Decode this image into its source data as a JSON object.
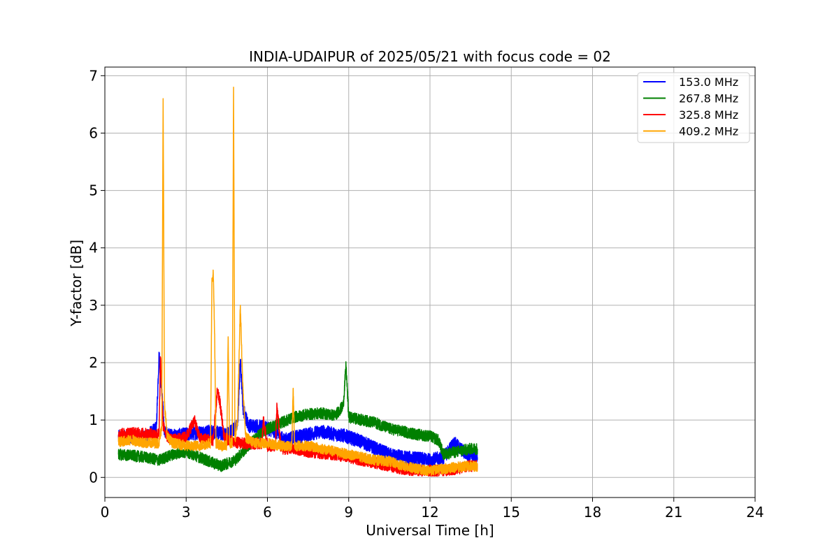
{
  "chart_data": {
    "type": "line",
    "title": "INDIA-UDAIPUR of 2025/05/21 with focus code = 02",
    "xlabel": "Universal Time [h]",
    "ylabel": "Y-factor [dB]",
    "xlim": [
      0,
      24
    ],
    "ylim": [
      -0.35,
      7.15
    ],
    "xticks": [
      0,
      3,
      6,
      9,
      12,
      15,
      18,
      21,
      24
    ],
    "yticks": [
      0,
      1,
      2,
      3,
      4,
      5,
      6,
      7
    ],
    "grid": true,
    "legend_position": "top-right",
    "series": [
      {
        "name": "153.0 MHz",
        "color": "#0000ff",
        "noise": 0.12,
        "x": [
          0.5,
          1.0,
          1.5,
          1.9,
          2.0,
          2.1,
          2.2,
          2.3,
          2.5,
          3.0,
          3.5,
          3.9,
          4.1,
          4.5,
          4.9,
          5.0,
          5.1,
          5.3,
          5.6,
          6.0,
          6.3,
          6.6,
          7.0,
          7.5,
          8.0,
          8.5,
          8.9,
          9.0,
          9.5,
          10.0,
          10.5,
          11.0,
          11.5,
          12.0,
          12.5,
          12.9,
          13.0,
          13.3,
          13.75
        ],
        "y": [
          0.7,
          0.72,
          0.7,
          0.85,
          2.15,
          1.5,
          0.8,
          0.75,
          0.72,
          0.75,
          0.78,
          0.8,
          0.78,
          0.75,
          0.9,
          2.05,
          1.2,
          0.9,
          0.9,
          0.85,
          0.8,
          0.65,
          0.7,
          0.75,
          0.8,
          0.75,
          0.72,
          0.7,
          0.62,
          0.5,
          0.4,
          0.35,
          0.33,
          0.3,
          0.35,
          0.6,
          0.55,
          0.42,
          0.35
        ]
      },
      {
        "name": "267.8 MHz",
        "color": "#008000",
        "noise": 0.1,
        "x": [
          0.5,
          1.0,
          1.5,
          2.0,
          2.5,
          3.0,
          3.5,
          4.0,
          4.3,
          4.8,
          5.2,
          5.6,
          6.0,
          6.5,
          7.0,
          7.5,
          8.0,
          8.5,
          8.8,
          8.9,
          9.0,
          9.5,
          10.0,
          10.5,
          11.0,
          11.5,
          12.0,
          12.3,
          12.5,
          13.0,
          13.5,
          13.75
        ],
        "y": [
          0.4,
          0.38,
          0.35,
          0.3,
          0.4,
          0.45,
          0.35,
          0.25,
          0.2,
          0.3,
          0.5,
          0.7,
          0.85,
          0.95,
          1.05,
          1.1,
          1.12,
          1.08,
          1.25,
          1.95,
          1.05,
          1.0,
          0.95,
          0.85,
          0.8,
          0.75,
          0.72,
          0.65,
          0.4,
          0.45,
          0.5,
          0.5
        ]
      },
      {
        "name": "325.8 MHz",
        "color": "#ff0000",
        "noise": 0.1,
        "x": [
          0.5,
          1.0,
          1.5,
          2.0,
          2.05,
          2.15,
          2.3,
          2.5,
          3.0,
          3.3,
          3.5,
          4.0,
          4.15,
          4.25,
          4.4,
          4.7,
          5.0,
          5.3,
          5.8,
          5.85,
          6.0,
          6.3,
          6.35,
          6.5,
          7.0,
          7.5,
          8.0,
          8.5,
          9.0,
          9.5,
          10.0,
          10.5,
          11.0,
          11.5,
          12.0,
          12.5,
          13.0,
          13.5,
          13.75
        ],
        "y": [
          0.75,
          0.78,
          0.76,
          0.75,
          2.1,
          0.9,
          0.72,
          0.65,
          0.7,
          1.0,
          0.68,
          0.65,
          1.5,
          1.3,
          0.7,
          0.62,
          0.6,
          0.58,
          0.6,
          1.0,
          0.55,
          0.55,
          1.25,
          0.5,
          0.5,
          0.45,
          0.42,
          0.4,
          0.35,
          0.3,
          0.25,
          0.2,
          0.15,
          0.12,
          0.12,
          0.12,
          0.15,
          0.2,
          0.2
        ]
      },
      {
        "name": "409.2 MHz",
        "color": "#ffa500",
        "noise": 0.09,
        "x": [
          0.5,
          1.0,
          1.5,
          2.0,
          2.1,
          2.15,
          2.2,
          2.3,
          2.5,
          3.0,
          3.5,
          3.9,
          3.95,
          4.0,
          4.05,
          4.1,
          4.3,
          4.5,
          4.55,
          4.6,
          4.7,
          4.75,
          4.8,
          4.9,
          5.0,
          5.05,
          5.1,
          5.2,
          5.5,
          6.0,
          6.5,
          6.9,
          6.95,
          7.0,
          7.5,
          8.0,
          8.5,
          9.0,
          9.5,
          10.0,
          10.5,
          11.0,
          11.5,
          12.0,
          12.5,
          13.0,
          13.5,
          13.75
        ],
        "y": [
          0.62,
          0.65,
          0.6,
          0.6,
          0.9,
          6.6,
          1.3,
          0.7,
          0.6,
          0.55,
          0.55,
          0.6,
          3.4,
          3.55,
          2.5,
          0.6,
          0.55,
          0.55,
          2.45,
          0.6,
          0.6,
          6.8,
          0.65,
          1.0,
          3.0,
          2.2,
          1.5,
          0.7,
          0.6,
          0.6,
          0.55,
          0.55,
          1.55,
          0.55,
          0.55,
          0.5,
          0.45,
          0.4,
          0.35,
          0.3,
          0.28,
          0.2,
          0.15,
          0.12,
          0.15,
          0.18,
          0.2,
          0.18
        ]
      }
    ]
  }
}
